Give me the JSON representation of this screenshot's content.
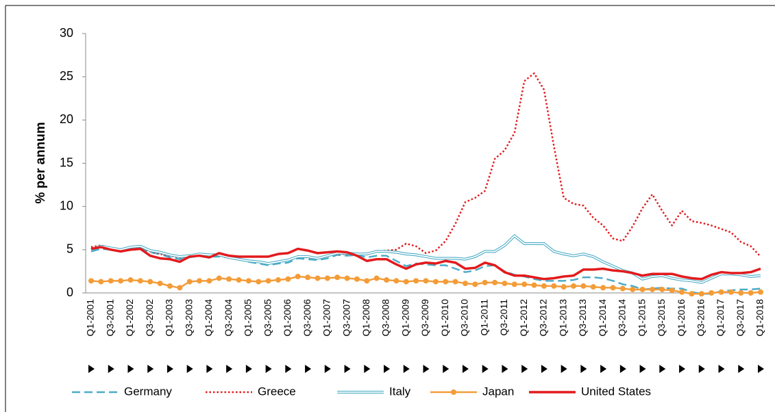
{
  "chart_data": {
    "type": "line",
    "y_label": "% per annum",
    "categories": [
      "Q1-2001",
      null,
      "Q3-2001",
      null,
      "Q1-2002",
      null,
      "Q3-2002",
      null,
      "Q1-2003",
      null,
      "Q3-2003",
      null,
      "Q1-2004",
      null,
      "Q3-2004",
      null,
      "Q1-2005",
      null,
      "Q3-2005",
      null,
      "Q1-2006",
      null,
      "Q3-2006",
      null,
      "Q1-2007",
      null,
      "Q3-2007",
      null,
      "Q1-2008",
      null,
      "Q3-2008",
      null,
      "Q1-2009",
      null,
      "Q3-2009",
      null,
      "Q1-2010",
      null,
      "Q3-2010",
      null,
      "Q1-2011",
      null,
      "Q3-2011",
      null,
      "Q1-2012",
      null,
      "Q3-2012",
      null,
      "Q1-2013",
      null,
      "Q3-2013",
      null,
      "Q1-2014",
      null,
      "Q3-2014",
      null,
      "Q1-2015",
      null,
      "Q3-2015",
      null,
      "Q1-2016",
      null,
      "Q3-2016",
      null,
      "Q1-2017",
      null,
      "Q3-2017",
      null,
      "Q1-2018"
    ],
    "ylim": [
      0,
      30
    ],
    "yticks": [
      0,
      5,
      10,
      15,
      20,
      25,
      30
    ],
    "grid": false,
    "legend": "bottom",
    "series": [
      {
        "name": "Germany",
        "color": "#4bacc6",
        "style": "dashed",
        "values": [
          4.8,
          5.1,
          5.0,
          4.9,
          5.1,
          5.2,
          4.7,
          4.5,
          4.1,
          3.9,
          4.1,
          4.3,
          4.2,
          4.2,
          4.1,
          3.9,
          3.6,
          3.4,
          3.2,
          3.4,
          3.5,
          4.0,
          3.9,
          3.8,
          4.0,
          4.4,
          4.3,
          4.4,
          4.1,
          4.3,
          4.3,
          3.7,
          3.1,
          3.4,
          3.3,
          3.2,
          3.2,
          2.8,
          2.4,
          2.6,
          3.1,
          3.2,
          2.5,
          2.1,
          1.9,
          1.6,
          1.4,
          1.4,
          1.4,
          1.5,
          1.8,
          1.8,
          1.7,
          1.4,
          1.0,
          0.8,
          0.4,
          0.5,
          0.6,
          0.5,
          0.5,
          0.1,
          -0.1,
          -0.1,
          0.2,
          0.3,
          0.4,
          0.4,
          0.5
        ]
      },
      {
        "name": "Greece",
        "color": "#e31a1c",
        "style": "dotted",
        "values": [
          5.3,
          5.5,
          5.2,
          5.0,
          5.2,
          5.3,
          4.8,
          4.5,
          4.3,
          4.1,
          4.2,
          4.4,
          4.4,
          4.4,
          4.2,
          4.0,
          3.7,
          3.6,
          3.4,
          3.6,
          3.8,
          4.2,
          4.1,
          4.0,
          4.3,
          4.5,
          4.5,
          4.5,
          4.5,
          4.8,
          4.9,
          5.0,
          5.7,
          5.4,
          4.6,
          4.9,
          6.0,
          8.0,
          10.5,
          11.0,
          11.8,
          15.5,
          16.5,
          18.5,
          24.5,
          25.4,
          23.5,
          17.0,
          11.0,
          10.3,
          10.1,
          8.7,
          7.8,
          6.3,
          6.0,
          7.7,
          9.8,
          11.4,
          9.5,
          7.8,
          9.5,
          8.3,
          8.1,
          7.8,
          7.4,
          7.0,
          5.9,
          5.4,
          4.2
        ]
      },
      {
        "name": "Italy",
        "color": "#4bacc6",
        "style": "double",
        "values": [
          5.0,
          5.4,
          5.2,
          5.0,
          5.3,
          5.4,
          4.9,
          4.7,
          4.4,
          4.2,
          4.3,
          4.5,
          4.4,
          4.4,
          4.1,
          3.9,
          3.7,
          3.6,
          3.4,
          3.6,
          3.8,
          4.2,
          4.2,
          4.0,
          4.3,
          4.6,
          4.6,
          4.5,
          4.5,
          4.8,
          4.8,
          4.7,
          4.5,
          4.4,
          4.2,
          4.0,
          4.0,
          4.0,
          3.9,
          4.2,
          4.8,
          4.8,
          5.5,
          6.6,
          5.7,
          5.7,
          5.7,
          4.8,
          4.5,
          4.3,
          4.5,
          4.2,
          3.6,
          3.1,
          2.6,
          2.3,
          1.6,
          1.9,
          2.0,
          1.7,
          1.5,
          1.4,
          1.2,
          1.7,
          2.2,
          2.2,
          2.1,
          1.9,
          2.0
        ]
      },
      {
        "name": "Japan",
        "color": "#f39c38",
        "style": "solid",
        "marker": "circle",
        "values": [
          1.4,
          1.3,
          1.4,
          1.4,
          1.5,
          1.4,
          1.3,
          1.1,
          0.8,
          0.6,
          1.3,
          1.4,
          1.4,
          1.7,
          1.6,
          1.5,
          1.4,
          1.3,
          1.4,
          1.5,
          1.6,
          1.9,
          1.8,
          1.7,
          1.7,
          1.8,
          1.7,
          1.6,
          1.4,
          1.7,
          1.5,
          1.4,
          1.3,
          1.4,
          1.4,
          1.3,
          1.3,
          1.3,
          1.1,
          1.0,
          1.2,
          1.2,
          1.1,
          1.0,
          1.0,
          0.9,
          0.8,
          0.8,
          0.7,
          0.8,
          0.8,
          0.7,
          0.6,
          0.6,
          0.5,
          0.4,
          0.4,
          0.4,
          0.4,
          0.3,
          0.1,
          -0.1,
          -0.1,
          0.0,
          0.1,
          0.1,
          0.0,
          0.0,
          0.1
        ]
      },
      {
        "name": "United States",
        "color": "#e31a1c",
        "style": "solid",
        "width": 3.5,
        "values": [
          5.1,
          5.3,
          5.0,
          4.8,
          5.0,
          5.1,
          4.3,
          4.0,
          3.9,
          3.6,
          4.2,
          4.3,
          4.1,
          4.6,
          4.3,
          4.2,
          4.2,
          4.2,
          4.2,
          4.5,
          4.6,
          5.1,
          4.9,
          4.6,
          4.7,
          4.8,
          4.7,
          4.3,
          3.7,
          3.9,
          3.9,
          3.3,
          2.8,
          3.3,
          3.5,
          3.4,
          3.7,
          3.5,
          2.8,
          2.9,
          3.5,
          3.2,
          2.4,
          2.0,
          2.0,
          1.8,
          1.6,
          1.7,
          1.9,
          2.0,
          2.7,
          2.7,
          2.8,
          2.6,
          2.5,
          2.3,
          2.0,
          2.2,
          2.2,
          2.2,
          1.9,
          1.7,
          1.6,
          2.1,
          2.4,
          2.3,
          2.3,
          2.4,
          2.8
        ]
      }
    ]
  }
}
